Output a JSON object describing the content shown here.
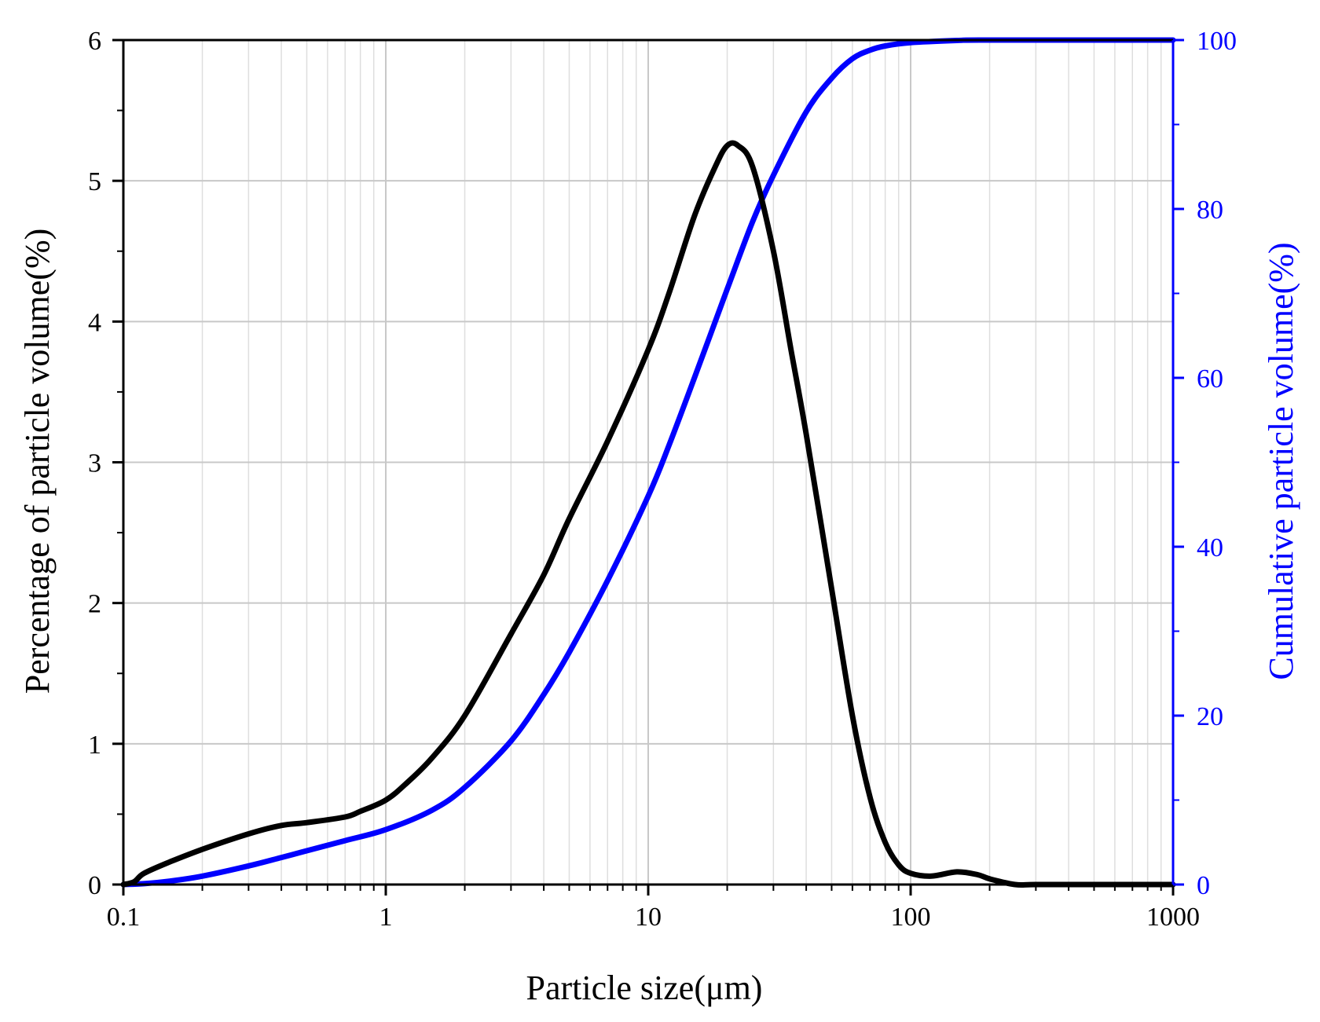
{
  "chart_data": {
    "type": "line",
    "title": "",
    "xlabel": "Particle size(μm)",
    "ylabel": "Percentage of particle volume(%)",
    "y2label": "Cumulative particle volume(%)",
    "xscale": "log",
    "xlim": [
      0.1,
      1000
    ],
    "ylim": [
      0,
      6
    ],
    "y2lim": [
      0,
      100
    ],
    "grid": true,
    "x_ticks": [
      {
        "value": 0.1,
        "label": "0.1"
      },
      {
        "value": 1,
        "label": "1"
      },
      {
        "value": 10,
        "label": "10"
      },
      {
        "value": 100,
        "label": "100"
      },
      {
        "value": 1000,
        "label": "1000"
      }
    ],
    "y_ticks": [
      {
        "value": 0,
        "label": "0"
      },
      {
        "value": 1,
        "label": "1"
      },
      {
        "value": 2,
        "label": "2"
      },
      {
        "value": 3,
        "label": "3"
      },
      {
        "value": 4,
        "label": "4"
      },
      {
        "value": 5,
        "label": "5"
      },
      {
        "value": 6,
        "label": "6"
      }
    ],
    "y2_ticks": [
      {
        "value": 0,
        "label": "0"
      },
      {
        "value": 20,
        "label": "20"
      },
      {
        "value": 40,
        "label": "40"
      },
      {
        "value": 60,
        "label": "60"
      },
      {
        "value": 80,
        "label": "80"
      },
      {
        "value": 100,
        "label": "100"
      }
    ],
    "series": [
      {
        "name": "Percentage of particle volume",
        "axis": "left",
        "color": "#000000",
        "x": [
          0.1,
          0.11,
          0.12,
          0.15,
          0.2,
          0.3,
          0.4,
          0.5,
          0.7,
          0.8,
          1,
          1.2,
          1.5,
          2,
          3,
          4,
          5,
          7,
          10,
          12,
          15,
          18,
          20,
          22,
          25,
          30,
          35,
          40,
          50,
          60,
          70,
          80,
          90,
          100,
          120,
          150,
          180,
          200,
          250,
          300,
          500,
          1000
        ],
        "values": [
          0,
          0.02,
          0.08,
          0.16,
          0.25,
          0.36,
          0.42,
          0.44,
          0.48,
          0.52,
          0.6,
          0.72,
          0.9,
          1.2,
          1.78,
          2.2,
          2.6,
          3.15,
          3.8,
          4.2,
          4.75,
          5.1,
          5.25,
          5.25,
          5.1,
          4.5,
          3.8,
          3.2,
          2.1,
          1.2,
          0.62,
          0.3,
          0.14,
          0.08,
          0.06,
          0.09,
          0.07,
          0.04,
          0,
          0,
          0,
          0
        ]
      },
      {
        "name": "Cumulative particle volume",
        "axis": "right",
        "color": "#0000ff",
        "x": [
          0.1,
          0.12,
          0.15,
          0.2,
          0.3,
          0.4,
          0.5,
          0.7,
          1,
          1.5,
          2,
          3,
          4,
          5,
          7,
          10,
          12,
          15,
          20,
          25,
          30,
          40,
          50,
          60,
          70,
          80,
          100,
          150,
          200,
          1000
        ],
        "values": [
          0,
          0.1,
          0.4,
          1,
          2.2,
          3.2,
          4,
          5.2,
          6.5,
          8.8,
          11.5,
          17,
          22.5,
          27.5,
          36,
          46,
          52,
          60,
          70.5,
          78.5,
          84,
          91.5,
          95.5,
          97.8,
          98.8,
          99.3,
          99.7,
          99.95,
          100,
          100
        ]
      }
    ]
  }
}
